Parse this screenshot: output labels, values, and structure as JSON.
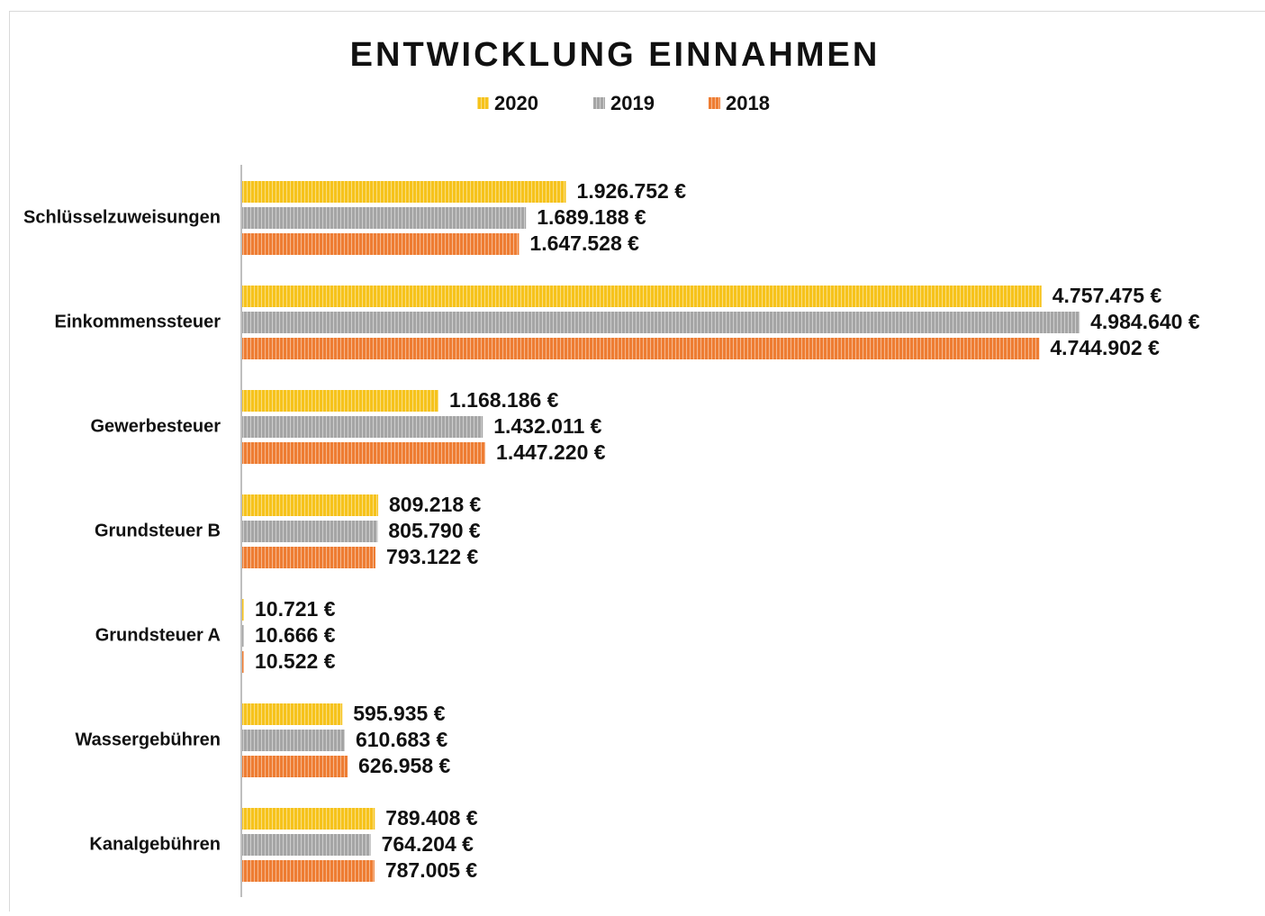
{
  "chart_data": {
    "type": "bar",
    "orientation": "horizontal",
    "title": "ENTWICKLUNG EINNAHMEN",
    "categories": [
      "Schlüsselzuweisungen",
      "Einkommenssteuer",
      "Gewerbesteuer",
      "Grundsteuer B",
      "Grundsteuer A",
      "Wassergebühren",
      "Kanalgebühren"
    ],
    "series": [
      {
        "name": "2020",
        "color": "#f6c31c",
        "values": [
          1926752,
          4757475,
          1168186,
          809218,
          10721,
          595935,
          789408
        ],
        "value_labels": [
          "1.926.752 €",
          "4.757.475 €",
          "1.168.186 €",
          "809.218 €",
          "10.721 €",
          "595.935 €",
          "789.408 €"
        ]
      },
      {
        "name": "2019",
        "color": "#a5a5a5",
        "values": [
          1689188,
          4984640,
          1432011,
          805790,
          10666,
          610683,
          764204
        ],
        "value_labels": [
          "1.689.188 €",
          "4.984.640 €",
          "1.432.011 €",
          "805.790 €",
          "10.666 €",
          "610.683 €",
          "764.204 €"
        ]
      },
      {
        "name": "2018",
        "color": "#ee7d33",
        "values": [
          1647528,
          4744902,
          1447220,
          793122,
          10522,
          626958,
          787005
        ],
        "value_labels": [
          "1.647.528 €",
          "4.744.902 €",
          "1.447.220 €",
          "793.122 €",
          "10.522 €",
          "626.958 €",
          "787.005 €"
        ]
      }
    ],
    "legend": "top"
  }
}
